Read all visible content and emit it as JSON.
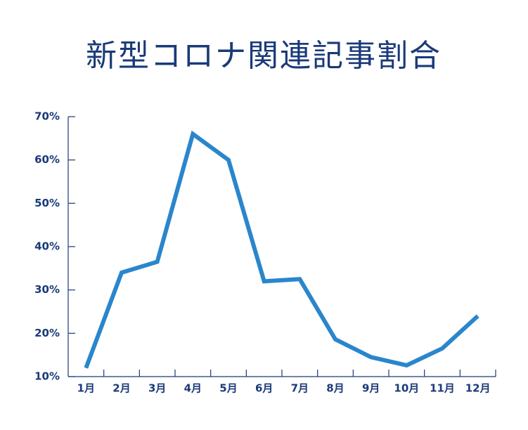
{
  "chart_data": {
    "type": "line",
    "title": "新型コロナ関連記事割合",
    "categories": [
      "1月",
      "2月",
      "3月",
      "4月",
      "5月",
      "6月",
      "7月",
      "8月",
      "9月",
      "10月",
      "11月",
      "12月"
    ],
    "series": [
      {
        "color": "#2a86cc",
        "values": [
          12,
          34,
          36.5,
          66,
          60,
          32,
          32.5,
          18.6,
          14.5,
          12.6,
          16.5,
          24
        ]
      }
    ],
    "ylim": [
      10,
      70
    ],
    "yticks": [
      {
        "value": 10,
        "label": "10%"
      },
      {
        "value": 20,
        "label": "20%"
      },
      {
        "value": 30,
        "label": "30%"
      },
      {
        "value": 40,
        "label": "40%"
      },
      {
        "value": 50,
        "label": "50%"
      },
      {
        "value": 60,
        "label": "60%"
      },
      {
        "value": 70,
        "label": "70%"
      }
    ],
    "grid": false
  }
}
